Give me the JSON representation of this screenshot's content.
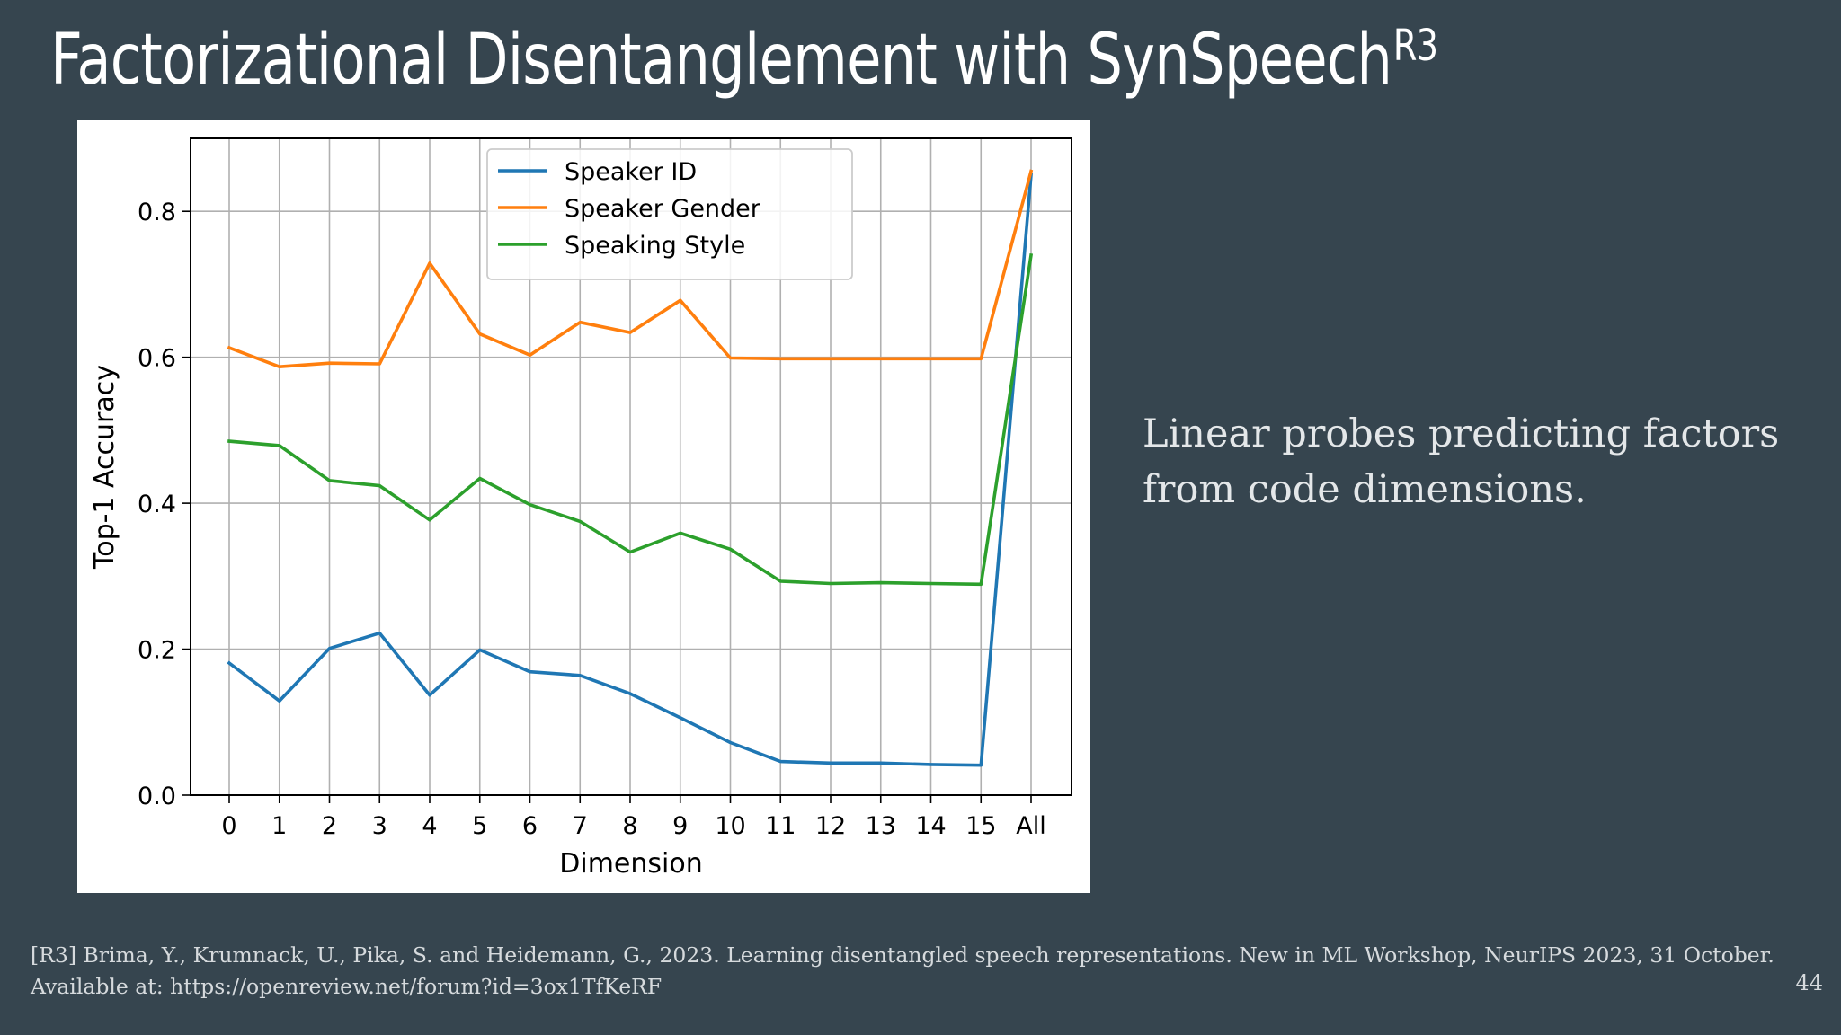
{
  "slide": {
    "title": "Factorizational Disentanglement with SynSpeech",
    "title_superscript": "R3",
    "side_text": "Linear probes predicting factors from code dimensions.",
    "footnote_line1": "[R3] Brima, Y., Krumnack, U., Pika, S. and Heidemann, G., 2023. Learning disentangled speech representations. New in ML Workshop, NeurIPS 2023, 31 October.",
    "footnote_line2": "Available at: https://openreview.net/forum?id=3ox1TfKeRF",
    "page_number": "44",
    "background_color": "#36454f"
  },
  "chart_data": {
    "type": "line",
    "xlabel": "Dimension",
    "ylabel": "Top-1 Accuracy",
    "categories": [
      "0",
      "1",
      "2",
      "3",
      "4",
      "5",
      "6",
      "7",
      "8",
      "9",
      "10",
      "11",
      "12",
      "13",
      "14",
      "15",
      "All"
    ],
    "ylim": [
      0.0,
      0.9
    ],
    "yticks": [
      0.0,
      0.2,
      0.4,
      0.6,
      0.8
    ],
    "ytick_labels": [
      "0.0",
      "0.2",
      "0.4",
      "0.6",
      "0.8"
    ],
    "grid": true,
    "legend_position": "top-center",
    "series": [
      {
        "name": "Speaker ID",
        "color": "#1f77b4",
        "values": [
          0.181,
          0.129,
          0.201,
          0.222,
          0.137,
          0.199,
          0.169,
          0.164,
          0.139,
          0.106,
          0.072,
          0.046,
          0.044,
          0.044,
          0.042,
          0.041,
          0.85
        ]
      },
      {
        "name": "Speaker Gender",
        "color": "#ff7f0e",
        "values": [
          0.613,
          0.587,
          0.592,
          0.591,
          0.729,
          0.632,
          0.603,
          0.648,
          0.634,
          0.678,
          0.599,
          0.598,
          0.598,
          0.598,
          0.598,
          0.598,
          0.855
        ]
      },
      {
        "name": "Speaking Style",
        "color": "#2ca02c",
        "values": [
          0.485,
          0.479,
          0.431,
          0.424,
          0.377,
          0.434,
          0.398,
          0.375,
          0.333,
          0.359,
          0.337,
          0.293,
          0.29,
          0.291,
          0.29,
          0.289,
          0.74
        ]
      }
    ]
  }
}
